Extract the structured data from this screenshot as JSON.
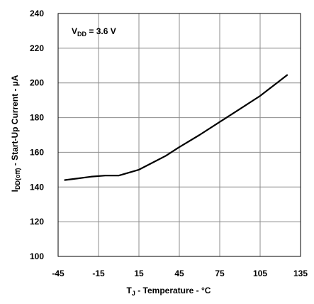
{
  "chart_data": {
    "type": "line",
    "annotation": {
      "main": "V",
      "sub": "DD",
      "rest": " = 3.6 V"
    },
    "xlabel": {
      "main": "T",
      "sub": "J",
      "rest": " - Temperature - °C"
    },
    "ylabel": {
      "main": "I",
      "sub": "DD(off)",
      "rest": " - Start-Up Current - µA"
    },
    "xlim": [
      -45,
      135
    ],
    "ylim": [
      100,
      240
    ],
    "x_ticks": [
      -45,
      -15,
      15,
      45,
      75,
      105,
      135
    ],
    "y_ticks": [
      100,
      120,
      140,
      160,
      180,
      200,
      220,
      240
    ],
    "grid": true,
    "series": [
      {
        "x": [
          -40,
          -30,
          -20,
          -10,
          0,
          15,
          25,
          35,
          45,
          60,
          75,
          90,
          105,
          125
        ],
        "y": [
          144,
          145,
          146,
          146.6,
          146.6,
          150,
          154,
          158,
          163,
          170,
          177.5,
          185,
          192.5,
          204.5
        ],
        "color": "#000000"
      }
    ]
  }
}
